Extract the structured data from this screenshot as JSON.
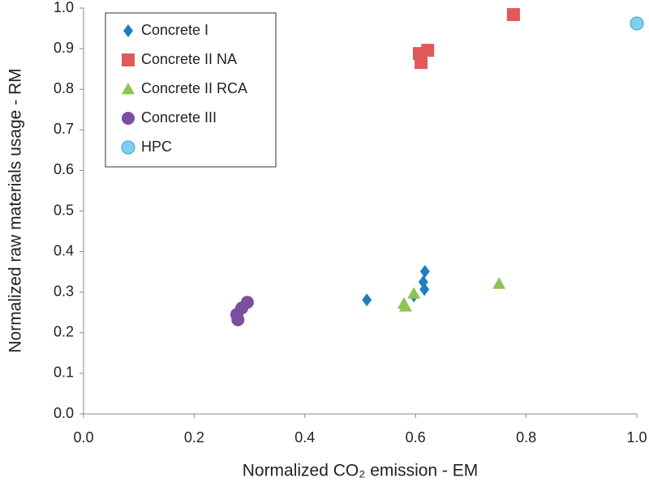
{
  "chart_data": {
    "type": "scatter",
    "xlabel": "Normalized CO₂ emission - EM",
    "ylabel": "Normalized raw materials usage - RM",
    "xlim": [
      0,
      1
    ],
    "ylim": [
      0,
      1
    ],
    "xticks": [
      {
        "value": 0,
        "label": "0.0"
      },
      0.2,
      0.4,
      0.6,
      0.8,
      {
        "value": 1,
        "label": "1.0"
      }
    ],
    "yticks": [
      {
        "value": 0,
        "label": "0.0"
      },
      0.1,
      0.2,
      0.3,
      0.4,
      0.5,
      0.6,
      0.7,
      0.8,
      0.9,
      {
        "value": 1,
        "label": "1.0"
      }
    ],
    "legend": "upper left",
    "series": [
      {
        "name": "Concrete I",
        "color": "#1f7ec0",
        "marker": "diamond",
        "x": [
          0.274,
          0.512,
          0.597,
          0.616,
          0.614,
          0.617
        ],
        "values": [
          0.245,
          0.281,
          0.291,
          0.307,
          0.325,
          0.351
        ]
      },
      {
        "name": "Concrete II NA",
        "color": "#e05a5a",
        "marker": "square",
        "x": [
          0.777,
          0.622,
          0.607,
          0.61
        ],
        "values": [
          0.984,
          0.896,
          0.888,
          0.866
        ]
      },
      {
        "name": "Concrete II RCA",
        "color": "#8cc455",
        "marker": "triangle",
        "x": [
          0.582,
          0.579,
          0.597,
          0.751
        ],
        "values": [
          0.265,
          0.272,
          0.297,
          0.321
        ]
      },
      {
        "name": "Concrete III",
        "color": "#7b4ea0",
        "marker": "circle",
        "x": [
          0.279,
          0.277,
          0.286,
          0.296
        ],
        "values": [
          0.232,
          0.245,
          0.261,
          0.275
        ]
      },
      {
        "name": "HPC",
        "color": "#7fd0f0",
        "marker": "circle",
        "x": [
          1.0
        ],
        "values": [
          0.962
        ]
      }
    ]
  }
}
